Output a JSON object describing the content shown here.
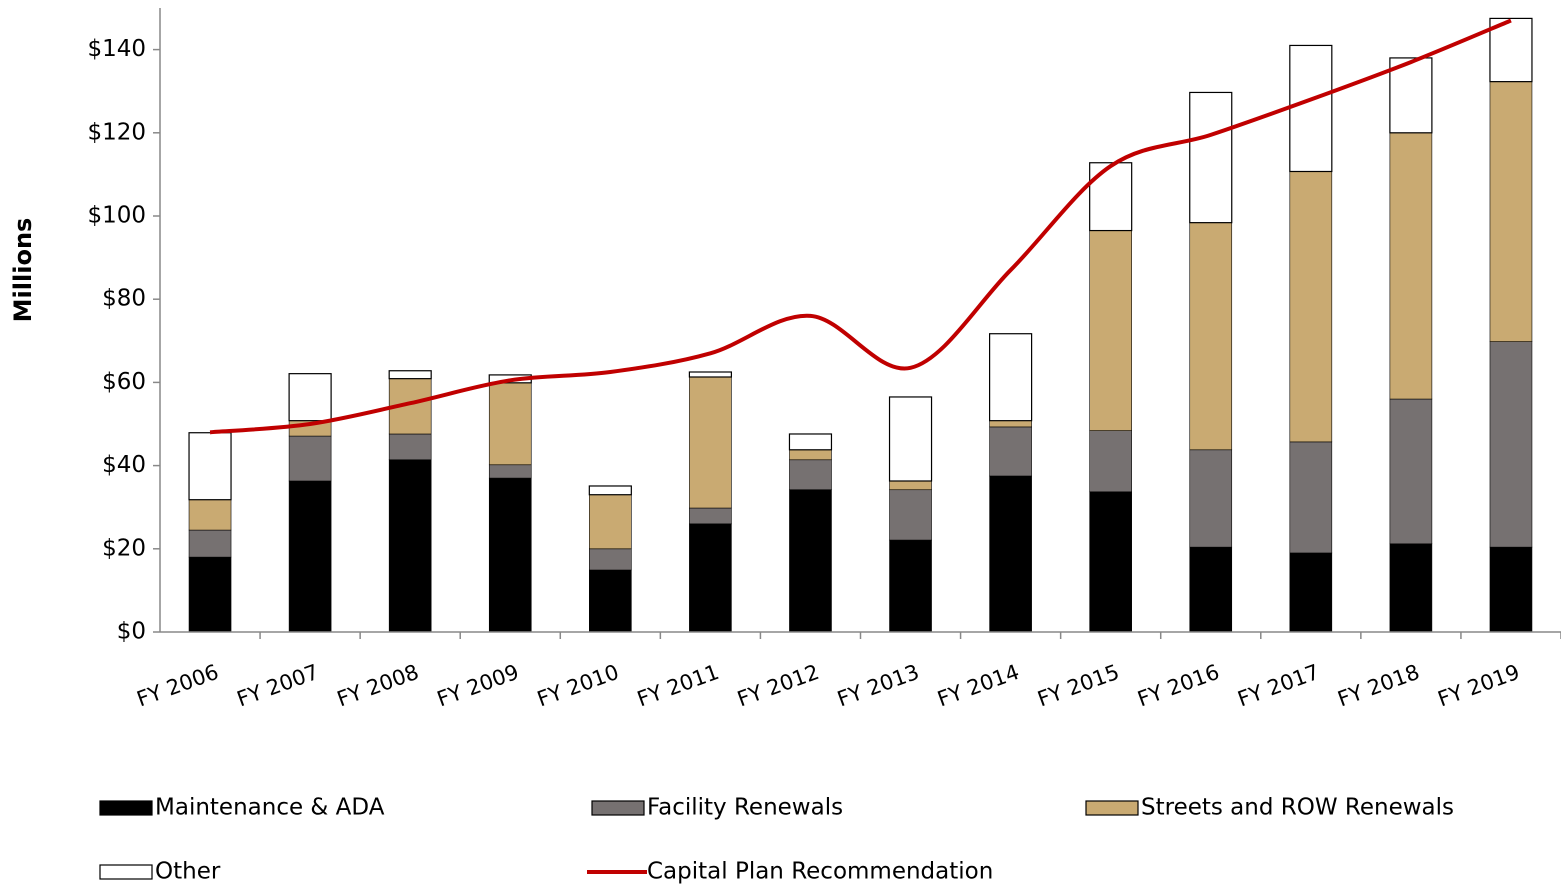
{
  "chart_data": {
    "type": "bar",
    "stacked": true,
    "y_label": "Millions",
    "categories": [
      "FY 2006",
      "FY 2007",
      "FY 2008",
      "FY 2009",
      "FY 2010",
      "FY 2011",
      "FY 2012",
      "FY 2013",
      "FY 2014",
      "FY 2015",
      "FY 2016",
      "FY 2017",
      "FY 2018",
      "FY 2019"
    ],
    "series": [
      {
        "name": "Maintenance & ADA",
        "color": "#000000",
        "values": [
          18,
          36.3,
          41.4,
          37,
          14.9,
          26,
          34.2,
          22.1,
          37.5,
          33.7,
          20.4,
          19,
          21.2,
          20.4
        ]
      },
      {
        "name": "Facility Renewals",
        "color": "#767171",
        "values": [
          6.5,
          10.8,
          6.2,
          3.2,
          5.1,
          3.8,
          7.2,
          12.1,
          11.8,
          14.7,
          23.4,
          26.7,
          34.8,
          49.4
        ]
      },
      {
        "name": "Streets and ROW Renewals",
        "color": "#c9aa72",
        "values": [
          7.3,
          3.7,
          13.3,
          19.7,
          13,
          31.5,
          2.4,
          2.1,
          1.5,
          48.1,
          54.6,
          65,
          64,
          62.5
        ]
      },
      {
        "name": "Other",
        "color": "#ffffff",
        "values": [
          16.1,
          11.3,
          1.9,
          1.9,
          2.1,
          1.2,
          3.8,
          20.2,
          20.9,
          16.3,
          31.3,
          30.3,
          18,
          15.2
        ]
      },
      {
        "name": "Capital Plan Recommendation",
        "type": "line",
        "color": "#c00000",
        "values": [
          48,
          50,
          55,
          60.5,
          62.5,
          67,
          76,
          63.5,
          87,
          112,
          119.5,
          128,
          137,
          147
        ]
      }
    ],
    "ylim": [
      0,
      150
    ],
    "yticks": [
      {
        "value": 0,
        "label": "$0"
      },
      {
        "value": 20,
        "label": "$20"
      },
      {
        "value": 40,
        "label": "$40"
      },
      {
        "value": 60,
        "label": "$60"
      },
      {
        "value": 80,
        "label": "$80"
      },
      {
        "value": 100,
        "label": "$100"
      },
      {
        "value": 120,
        "label": "$120"
      },
      {
        "value": 140,
        "label": "$140"
      }
    ],
    "grid": false,
    "legend": "bottom"
  }
}
